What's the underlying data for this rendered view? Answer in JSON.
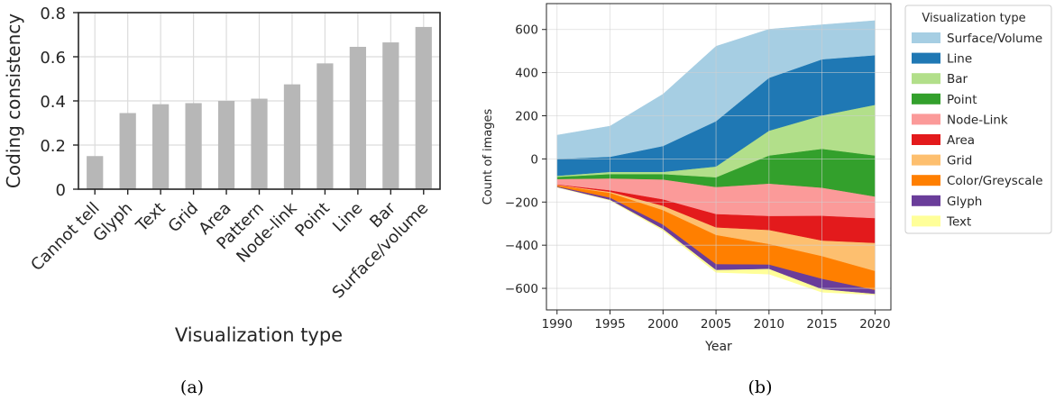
{
  "panel_a": {
    "caption": "(a)",
    "ylabel": "Coding consistency",
    "xlabel": "Visualization type",
    "bar_color": "#b7b7b7"
  },
  "panel_b": {
    "caption": "(b)",
    "ylabel": "Count of images",
    "xlabel": "Year",
    "legend_title": "Visualization type"
  },
  "chart_data": [
    {
      "type": "bar",
      "categories": [
        "Cannot tell",
        "Glyph",
        "Text",
        "Grid",
        "Area",
        "Pattern",
        "Node-link",
        "Point",
        "Line",
        "Bar",
        "Surface/volume"
      ],
      "values": [
        0.15,
        0.345,
        0.385,
        0.39,
        0.4,
        0.41,
        0.475,
        0.57,
        0.645,
        0.665,
        0.735
      ],
      "xlabel": "Visualization type",
      "ylabel": "Coding consistency",
      "ylim": [
        0,
        0.8
      ],
      "yticks": [
        "0",
        "0.2",
        "0.4",
        "0.6",
        "0.8"
      ],
      "grid": true
    },
    {
      "type": "area",
      "x": [
        1990,
        1995,
        2000,
        2005,
        2010,
        2015,
        2020
      ],
      "xticks": [
        "1990",
        "1995",
        "2000",
        "2005",
        "2010",
        "2015",
        "2020"
      ],
      "yticks": [
        "−600",
        "−400",
        "−200",
        "0",
        "200",
        "400",
        "600"
      ],
      "xlabel": "Year",
      "ylabel": "Count of images",
      "ylim": [
        -700,
        720
      ],
      "xlim": [
        1989,
        2021.5
      ],
      "grid": true,
      "legend_title": "Visualization type",
      "legend_position": "right",
      "series_bottom_y": [
        -132,
        -192,
        -332,
        -526,
        -534,
        -618,
        -630
      ],
      "series": [
        {
          "name": "Text",
          "color": "#ffff99",
          "values": [
            2,
            3,
            8,
            12,
            25,
            15,
            5
          ]
        },
        {
          "name": "Glyph",
          "color": "#6a3d9a",
          "values": [
            3,
            10,
            20,
            27,
            20,
            48,
            18
          ]
        },
        {
          "name": "Color/Greyscale",
          "color": "#ff7f00",
          "values": [
            5,
            22,
            67,
            135,
            95,
            105,
            88
          ]
        },
        {
          "name": "Grid",
          "color": "#fdbf6f",
          "values": [
            2,
            5,
            20,
            35,
            65,
            72,
            130
          ]
        },
        {
          "name": "Area",
          "color": "#e31a1c",
          "values": [
            2,
            7,
            30,
            62,
            65,
            115,
            115
          ]
        },
        {
          "name": "Node-Link",
          "color": "#fb9a99",
          "values": [
            25,
            55,
            92,
            125,
            150,
            130,
            100
          ]
        },
        {
          "name": "Point",
          "color": "#33a02c",
          "values": [
            10,
            20,
            25,
            45,
            130,
            180,
            190
          ]
        },
        {
          "name": "Bar",
          "color": "#b2df8a",
          "values": [
            5,
            10,
            10,
            50,
            115,
            155,
            235
          ]
        },
        {
          "name": "Line",
          "color": "#1f78b4",
          "values": [
            78,
            70,
            120,
            210,
            245,
            260,
            230
          ]
        },
        {
          "name": "Surface/Volume",
          "color": "#a6cee3",
          "values": [
            110,
            142,
            240,
            347,
            225,
            160,
            160
          ]
        }
      ],
      "legend_order": [
        "Surface/Volume",
        "Line",
        "Bar",
        "Point",
        "Node-Link",
        "Area",
        "Grid",
        "Color/Greyscale",
        "Glyph",
        "Text"
      ]
    }
  ]
}
